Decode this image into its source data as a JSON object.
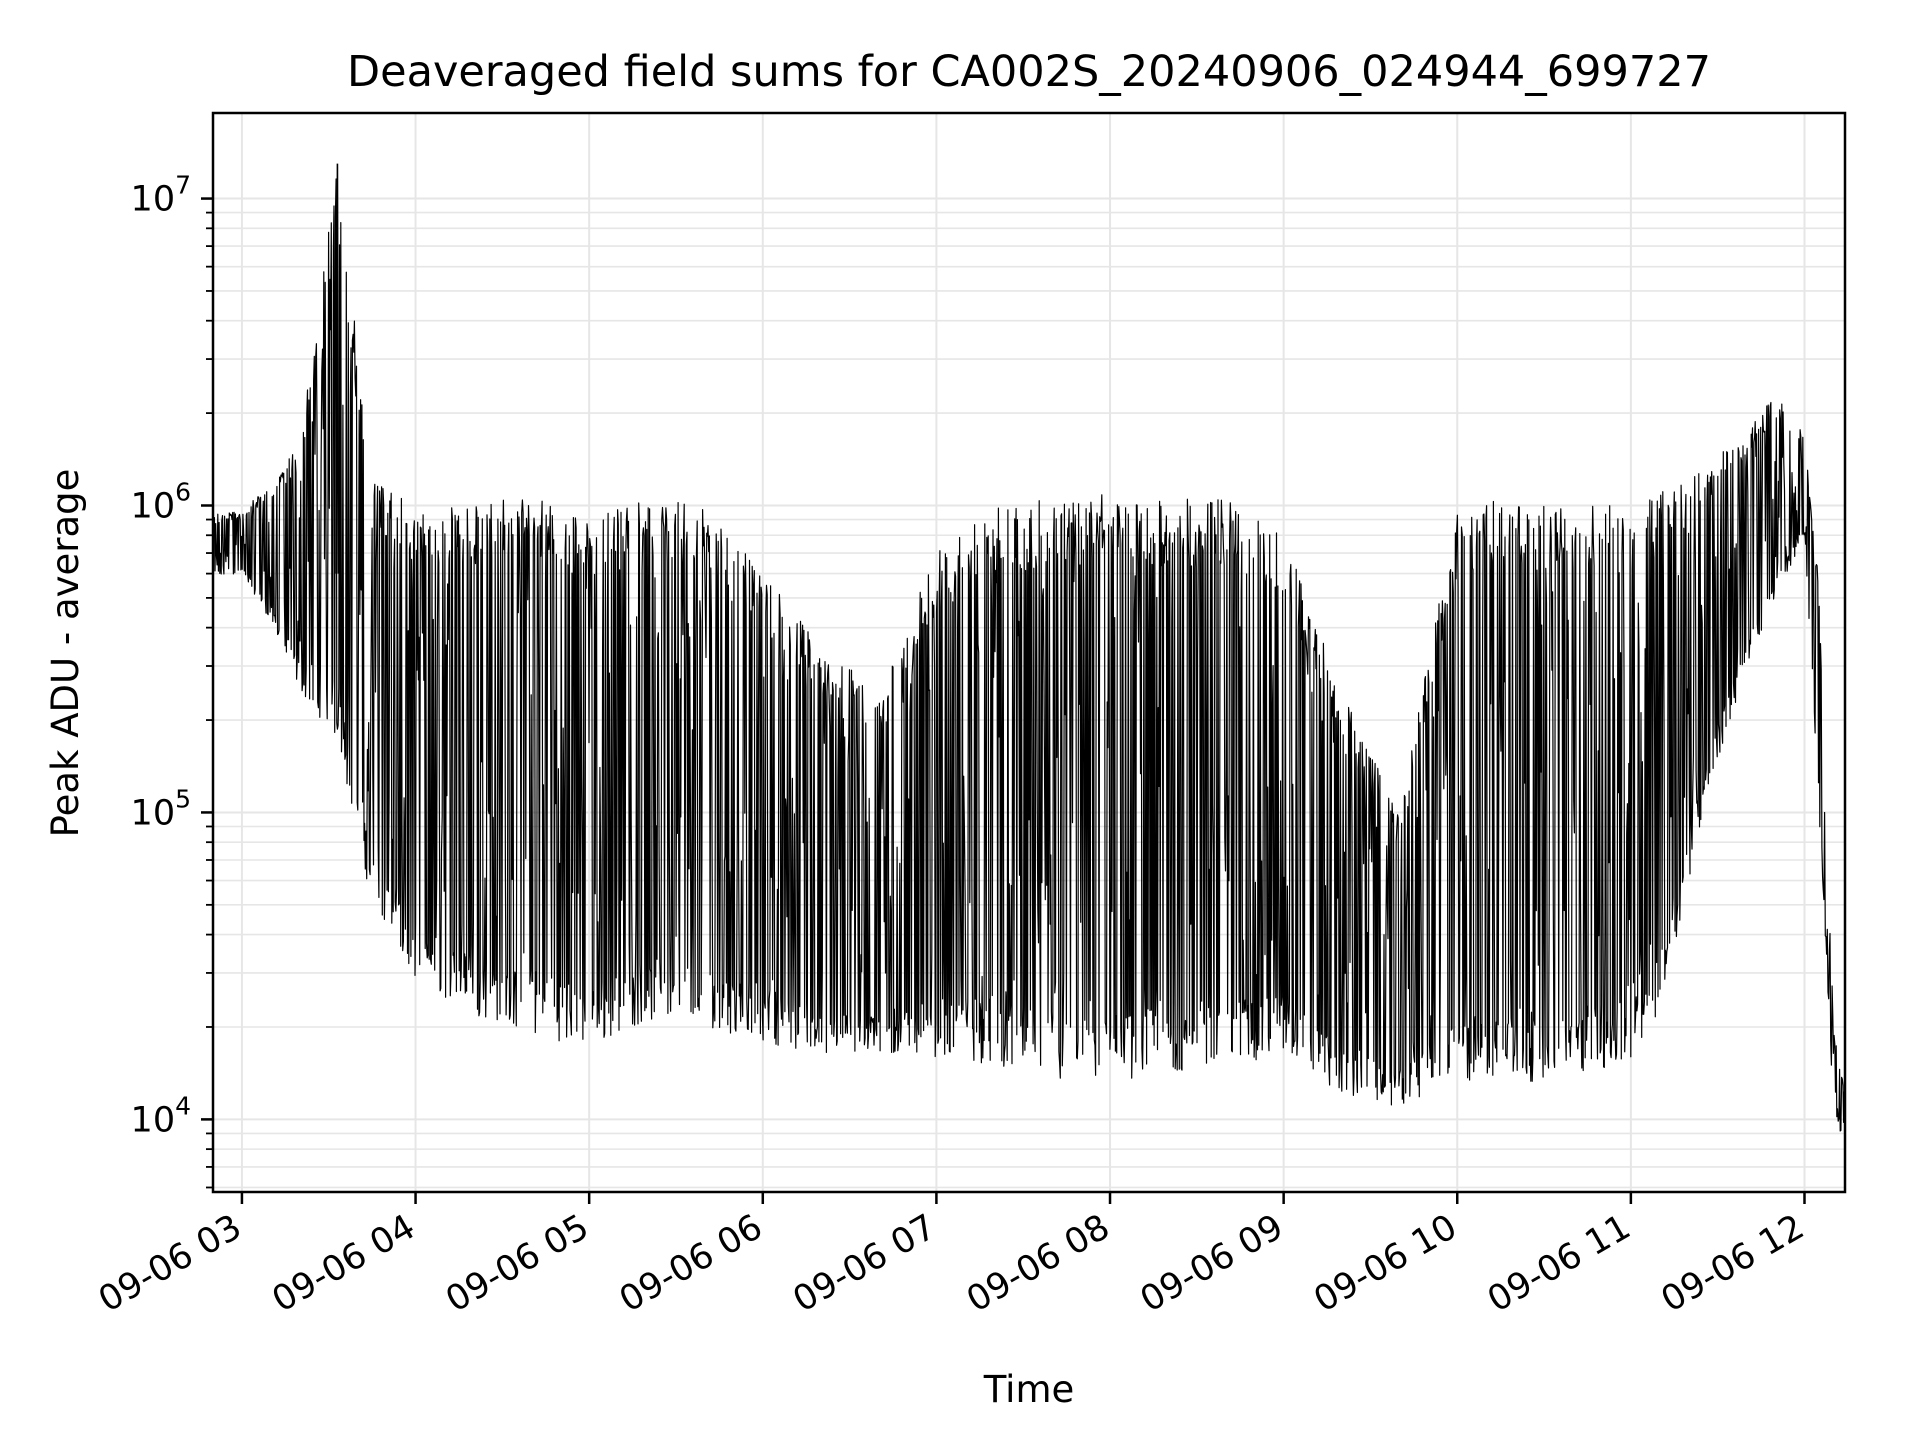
{
  "chart_data": {
    "type": "line",
    "title": "Deaveraged field sums for CA002S_20240906_024944_699727",
    "xlabel": "Time",
    "ylabel": "Peak ADU - average",
    "y_scale": "log",
    "ylim": [
      5800,
      19000000
    ],
    "xlim": [
      "2024-09-06 02:50",
      "2024-09-06 12:14"
    ],
    "grid": true,
    "line_color": "#000000",
    "grid_color": "#e6e6e6",
    "x_ticks": [
      {
        "value": "2024-09-06 03:00",
        "label": "09-06 03"
      },
      {
        "value": "2024-09-06 04:00",
        "label": "09-06 04"
      },
      {
        "value": "2024-09-06 05:00",
        "label": "09-06 05"
      },
      {
        "value": "2024-09-06 06:00",
        "label": "09-06 06"
      },
      {
        "value": "2024-09-06 07:00",
        "label": "09-06 07"
      },
      {
        "value": "2024-09-06 08:00",
        "label": "09-06 08"
      },
      {
        "value": "2024-09-06 09:00",
        "label": "09-06 09"
      },
      {
        "value": "2024-09-06 10:00",
        "label": "09-06 10"
      },
      {
        "value": "2024-09-06 11:00",
        "label": "09-06 11"
      },
      {
        "value": "2024-09-06 12:00",
        "label": "09-06 12"
      }
    ],
    "y_ticks": [
      {
        "value": 10000,
        "base": "10",
        "exp": "4"
      },
      {
        "value": 100000,
        "base": "10",
        "exp": "5"
      },
      {
        "value": 1000000,
        "base": "10",
        "exp": "6"
      },
      {
        "value": 10000000,
        "base": "10",
        "exp": "7"
      }
    ],
    "series": [
      {
        "values": [
          {
            "x": "2024-09-06 02:50",
            "low": 580000,
            "high": 950000
          },
          {
            "x": "2024-09-06 03:00",
            "low": 600000,
            "high": 950000
          },
          {
            "x": "2024-09-06 03:10",
            "low": 420000,
            "high": 1200000
          },
          {
            "x": "2024-09-06 03:20",
            "low": 250000,
            "high": 1600000
          },
          {
            "x": "2024-09-06 03:33",
            "low": 170000,
            "high": 13000000
          },
          {
            "x": "2024-09-06 03:45",
            "low": 50000,
            "high": 1200000
          },
          {
            "x": "2024-09-06 04:00",
            "low": 28000,
            "high": 1000000
          },
          {
            "x": "2024-09-06 04:20",
            "low": 22000,
            "high": 1000000
          },
          {
            "x": "2024-09-06 04:40",
            "low": 19000,
            "high": 1100000
          },
          {
            "x": "2024-09-06 05:00",
            "low": 17000,
            "high": 900000
          },
          {
            "x": "2024-09-06 05:20",
            "low": 21000,
            "high": 1050000
          },
          {
            "x": "2024-09-06 05:40",
            "low": 20000,
            "high": 1000000
          },
          {
            "x": "2024-09-06 06:00",
            "low": 18000,
            "high": 600000
          },
          {
            "x": "2024-09-06 06:20",
            "low": 16000,
            "high": 350000
          },
          {
            "x": "2024-09-06 06:40",
            "low": 16000,
            "high": 250000
          },
          {
            "x": "2024-09-06 07:00",
            "low": 16000,
            "high": 700000
          },
          {
            "x": "2024-09-06 07:20",
            "low": 15000,
            "high": 1000000
          },
          {
            "x": "2024-09-06 07:40",
            "low": 13000,
            "high": 1050000
          },
          {
            "x": "2024-09-06 08:00",
            "low": 13000,
            "high": 1100000
          },
          {
            "x": "2024-09-06 08:20",
            "low": 14000,
            "high": 1050000
          },
          {
            "x": "2024-09-06 08:40",
            "low": 15000,
            "high": 1050000
          },
          {
            "x": "2024-09-06 09:00",
            "low": 16000,
            "high": 800000
          },
          {
            "x": "2024-09-06 09:20",
            "low": 12000,
            "high": 250000
          },
          {
            "x": "2024-09-06 09:40",
            "low": 11000,
            "high": 100000
          },
          {
            "x": "2024-09-06 10:00",
            "low": 13000,
            "high": 1000000
          },
          {
            "x": "2024-09-06 10:20",
            "low": 13000,
            "high": 1050000
          },
          {
            "x": "2024-09-06 10:40",
            "low": 14000,
            "high": 1000000
          },
          {
            "x": "2024-09-06 11:00",
            "low": 15000,
            "high": 1000000
          },
          {
            "x": "2024-09-06 11:10",
            "low": 22000,
            "high": 1100000
          },
          {
            "x": "2024-09-06 11:25",
            "low": 100000,
            "high": 1300000
          },
          {
            "x": "2024-09-06 11:40",
            "low": 300000,
            "high": 1800000
          },
          {
            "x": "2024-09-06 11:50",
            "low": 500000,
            "high": 2300000
          },
          {
            "x": "2024-09-06 12:00",
            "low": 800000,
            "high": 1700000
          },
          {
            "x": "2024-09-06 12:05",
            "low": 100000,
            "high": 600000
          },
          {
            "x": "2024-09-06 12:10",
            "low": 11000,
            "high": 20000
          },
          {
            "x": "2024-09-06 12:14",
            "low": 8000,
            "high": 12000
          }
        ]
      }
    ]
  }
}
